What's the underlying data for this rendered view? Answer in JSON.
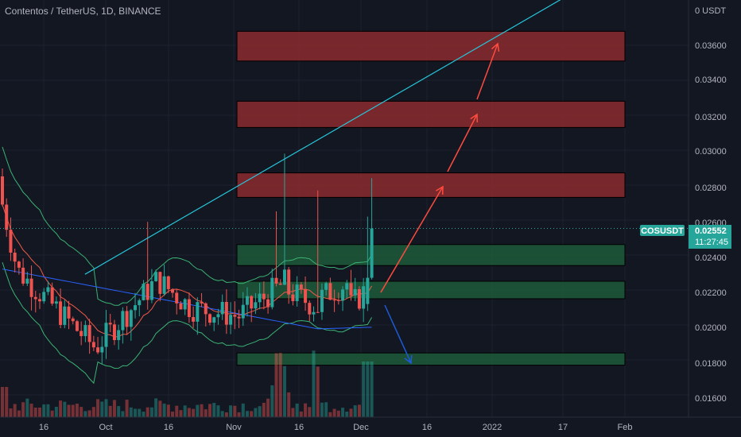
{
  "header": {
    "title": "Contentos / TetherUS, 1D, BINANCE"
  },
  "price_axis": {
    "unit_label": "0 USDT",
    "ticks": [
      "0.03600",
      "0.03400",
      "0.03200",
      "0.03000",
      "0.02800",
      "0.02600",
      "0.02400",
      "0.02200",
      "0.02000",
      "0.01800",
      "0.01600"
    ]
  },
  "time_axis": {
    "ticks": [
      "16",
      "Oct",
      "16",
      "Nov",
      "16",
      "Dec",
      "16",
      "2022",
      "17",
      "Feb"
    ]
  },
  "last_price": {
    "symbol": "COSUSDT",
    "price": "0.02552",
    "countdown": "11:27:45",
    "color": "#26a69a"
  },
  "colors": {
    "background": "#131722",
    "up_candle": "#26a69a",
    "down_candle": "#ef5350",
    "resistance_zone": "#8b2a2e",
    "support_zone": "#1f5a3a",
    "trendline": "#26c6da",
    "arrow_up": "#ff4b3e",
    "arrow_down": "#1e5bd8"
  },
  "chart_data": {
    "type": "candlestick",
    "symbol": "COSUSDT",
    "interval": "1D",
    "exchange": "BINANCE",
    "y_range": [
      0.0148,
      0.0389
    ],
    "zones_resistance": [
      [
        0.0351,
        0.0368
      ],
      [
        0.0313,
        0.0328
      ],
      [
        0.0273,
        0.0287
      ]
    ],
    "zones_support": [
      [
        0.0234,
        0.0246
      ],
      [
        0.0215,
        0.0225
      ],
      [
        0.0177,
        0.0184
      ]
    ],
    "trendline": [
      {
        "date": "2021-09-26",
        "price": 0.0229
      },
      {
        "date": "2022-01-01",
        "price": 0.0362
      }
    ],
    "last_price": 0.02552
  }
}
